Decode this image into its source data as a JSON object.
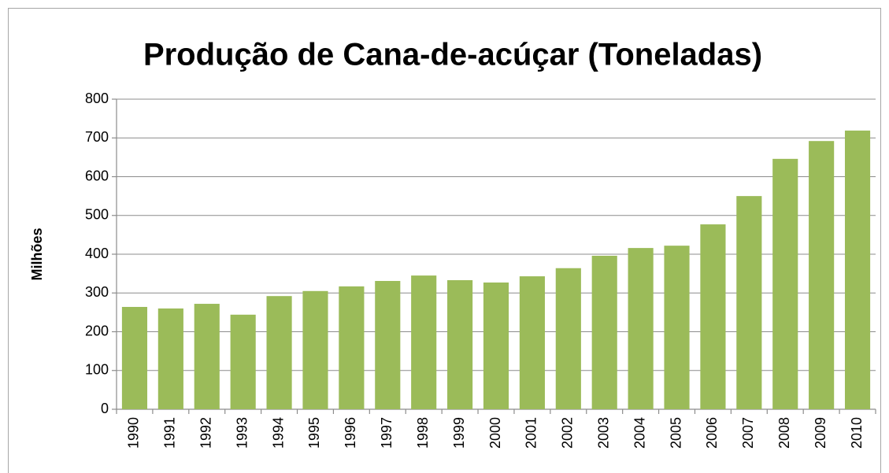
{
  "chart_data": {
    "type": "bar",
    "title": "Produção de Cana-de-acúçar (Toneladas)",
    "y_label": "Milhões",
    "categories": [
      "1990",
      "1991",
      "1992",
      "1993",
      "1994",
      "1995",
      "1996",
      "1997",
      "1998",
      "1999",
      "2000",
      "2001",
      "2002",
      "2003",
      "2004",
      "2005",
      "2006",
      "2007",
      "2008",
      "2009",
      "2010"
    ],
    "values": [
      264,
      260,
      272,
      244,
      292,
      305,
      317,
      331,
      345,
      333,
      327,
      343,
      364,
      396,
      416,
      422,
      477,
      550,
      646,
      692,
      719
    ],
    "color": "#9bbb59",
    "ylim": [
      0,
      800
    ],
    "yticks": [
      0,
      100,
      200,
      300,
      400,
      500,
      600,
      700,
      800
    ],
    "grid": true
  }
}
